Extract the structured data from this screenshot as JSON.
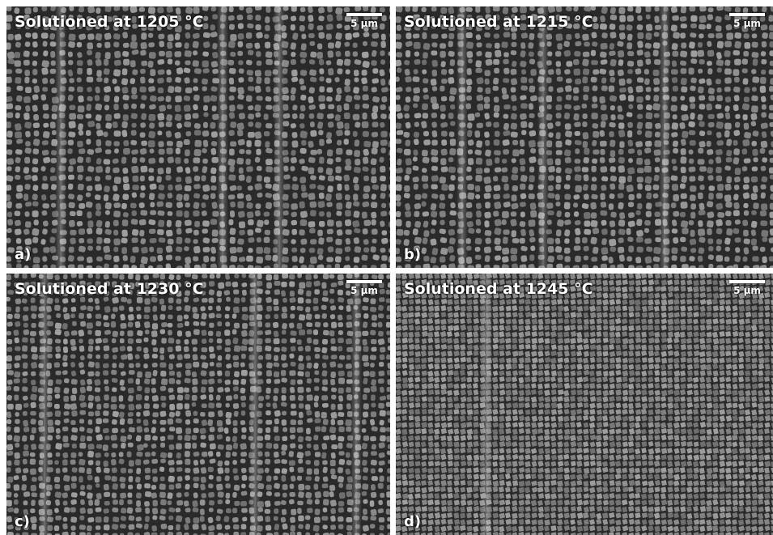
{
  "panels": [
    {
      "caption": "Solutioned at 1205 °C",
      "letter": "a)",
      "scale_label": "5 µm",
      "texture": "coarse"
    },
    {
      "caption": "Solutioned at 1215 °C",
      "letter": "b)",
      "scale_label": "5 µm",
      "texture": "coarse"
    },
    {
      "caption": "Solutioned at 1230 °C",
      "letter": "c)",
      "scale_label": "5 µm",
      "texture": "medium"
    },
    {
      "caption": "Solutioned at 1245 °C",
      "letter": "d)",
      "scale_label": "5 µm",
      "texture": "cuboidal"
    }
  ],
  "colors": {
    "matrix": "#2a2a2a",
    "precipitate": "#8c8c8c",
    "boundary": "#e0e0e0",
    "text": "#ffffff"
  }
}
